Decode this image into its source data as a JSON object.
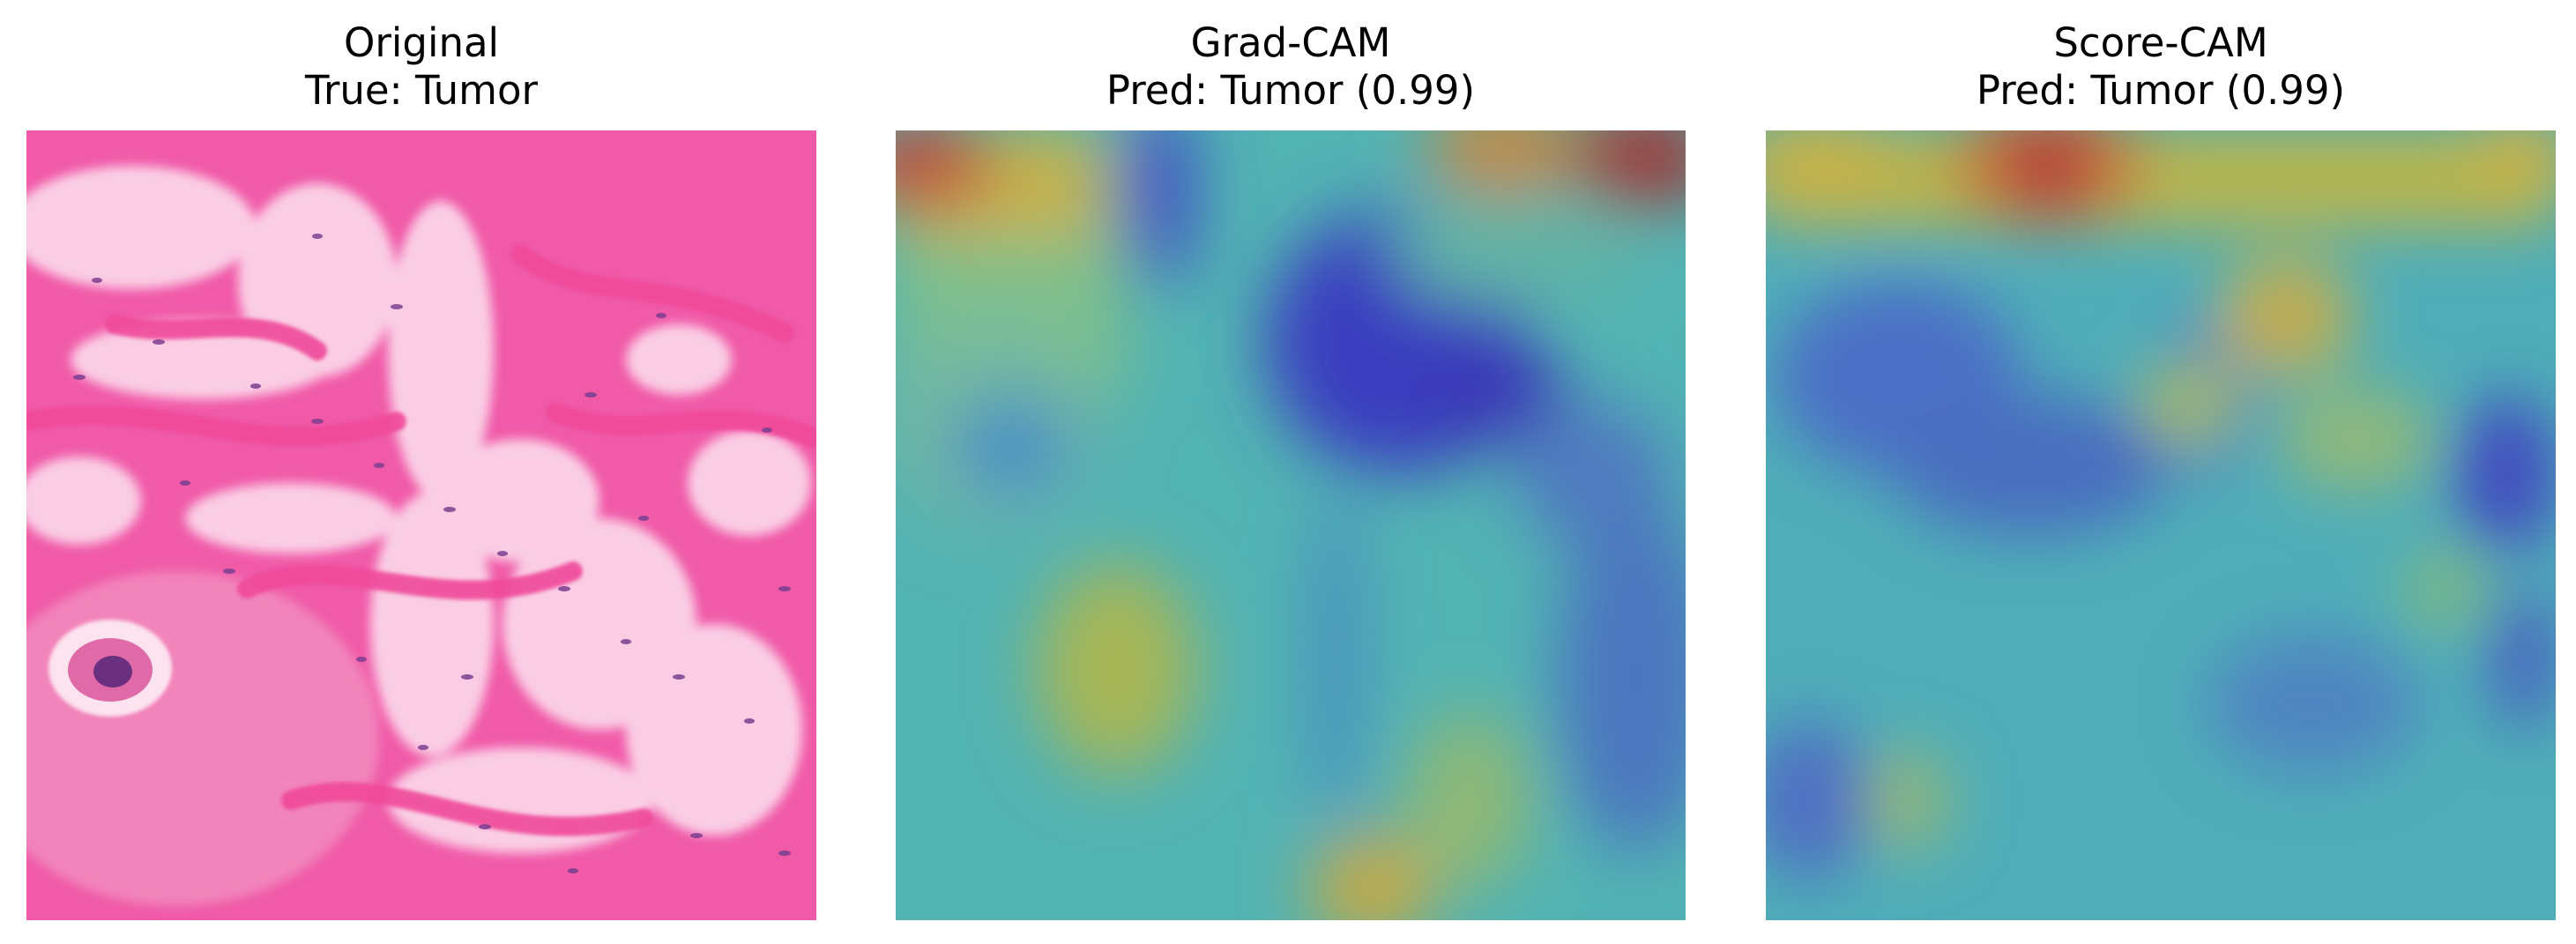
{
  "panels": [
    {
      "title": "Original",
      "subtitle": "True: Tumor",
      "image": "he-stained-tumor-tissue"
    },
    {
      "title": "Grad-CAM",
      "subtitle": "Pred: Tumor (0.99)",
      "image": "grad-cam-heatmap-overlay"
    },
    {
      "title": "Score-CAM",
      "subtitle": "Pred: Tumor (0.99)",
      "image": "score-cam-heatmap-overlay"
    }
  ],
  "colors": {
    "tissue_base": "#f05aa8",
    "tissue_light": "#fbd4e8",
    "nucleus": "#7a3e8f",
    "heat_low": "#3a3ec0",
    "heat_mid": "#4fb8b8",
    "heat_high": "#c9b24a",
    "heat_max": "#b23a35"
  }
}
